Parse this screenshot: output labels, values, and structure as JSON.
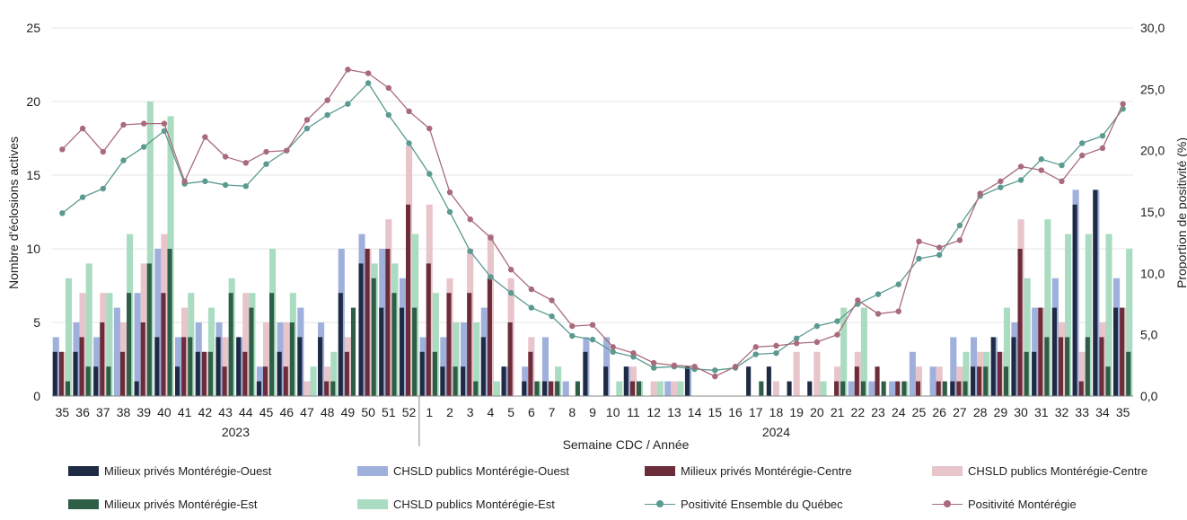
{
  "chart_data": {
    "type": "bar",
    "categories": [
      "35",
      "36",
      "37",
      "38",
      "39",
      "40",
      "41",
      "42",
      "43",
      "44",
      "45",
      "46",
      "47",
      "48",
      "49",
      "50",
      "51",
      "52",
      "1",
      "2",
      "3",
      "4",
      "5",
      "6",
      "7",
      "8",
      "9",
      "10",
      "11",
      "12",
      "13",
      "14",
      "15",
      "16",
      "17",
      "18",
      "19",
      "20",
      "21",
      "22",
      "23",
      "24",
      "25",
      "26",
      "27",
      "28",
      "29",
      "30",
      "31",
      "32",
      "33",
      "34",
      "35"
    ],
    "years": [
      {
        "label": "2023",
        "from": 0,
        "to": 17
      },
      {
        "label": "2024",
        "from": 18,
        "to": 52
      }
    ],
    "xlabel": "Semaine CDC / Année",
    "ylabel": "Nombre d'éclosions actives",
    "y2label": "Proportion de positivité (%)",
    "ylim": [
      0,
      25
    ],
    "y2lim": [
      0,
      30
    ],
    "yticks": [
      "0",
      "5",
      "10",
      "15",
      "20",
      "25"
    ],
    "y2ticks": [
      "0,0",
      "5,0",
      "10,0",
      "15,0",
      "20,0",
      "25,0",
      "30,0"
    ],
    "grid": true,
    "legend_position": "bottom",
    "series": [
      {
        "name": "Milieux privés Montérégie-Ouest",
        "kind": "bar",
        "color": "#1f2a44",
        "values": [
          3,
          3,
          2,
          0,
          1,
          4,
          2,
          3,
          4,
          4,
          1,
          3,
          4,
          4,
          7,
          9,
          6,
          6,
          3,
          2,
          2,
          4,
          2,
          1,
          1,
          0,
          3,
          2,
          2,
          0,
          0,
          2,
          0,
          0,
          2,
          2,
          1,
          1,
          0,
          0,
          0,
          0,
          0,
          0,
          1,
          2,
          4,
          4,
          3,
          6,
          13,
          14,
          6
        ]
      },
      {
        "name": "CHSLD publics Montérégie-Ouest",
        "kind": "bar",
        "color": "#9fb0dc",
        "values": [
          4,
          5,
          4,
          6,
          7,
          10,
          4,
          5,
          5,
          4,
          2,
          5,
          6,
          5,
          10,
          11,
          10,
          8,
          4,
          4,
          5,
          6,
          2,
          2,
          4,
          1,
          4,
          4,
          2,
          0,
          1,
          2,
          0,
          0,
          0,
          0,
          0,
          0,
          0,
          1,
          1,
          1,
          3,
          2,
          4,
          4,
          4,
          5,
          6,
          8,
          14,
          14,
          8
        ]
      },
      {
        "name": "Milieux privés  Montérégie-Centre",
        "kind": "bar",
        "color": "#6b2d3a",
        "values": [
          3,
          4,
          5,
          3,
          5,
          7,
          4,
          3,
          2,
          3,
          2,
          2,
          0,
          1,
          3,
          10,
          10,
          13,
          9,
          7,
          7,
          8,
          5,
          3,
          1,
          0,
          0,
          0,
          1,
          0,
          0,
          0,
          0,
          0,
          0,
          0,
          0,
          0,
          1,
          2,
          2,
          1,
          1,
          1,
          1,
          2,
          3,
          10,
          6,
          4,
          1,
          4,
          6
        ]
      },
      {
        "name": "CHSLD publics Montérégie-Centre",
        "kind": "bar",
        "color": "#e8c4cb",
        "values": [
          3,
          7,
          7,
          5,
          9,
          11,
          6,
          3,
          4,
          7,
          5,
          5,
          1,
          2,
          4,
          10,
          12,
          17,
          13,
          8,
          10,
          11,
          8,
          4,
          1,
          0,
          0,
          0,
          2,
          1,
          1,
          0,
          0,
          0,
          0,
          1,
          3,
          3,
          2,
          3,
          0,
          0,
          2,
          2,
          2,
          3,
          3,
          12,
          6,
          5,
          3,
          5,
          6
        ]
      },
      {
        "name": "Milieux privés Montérégie-Est",
        "kind": "bar",
        "color": "#2e5e45",
        "values": [
          1,
          2,
          2,
          7,
          9,
          10,
          4,
          3,
          7,
          6,
          7,
          5,
          0,
          1,
          6,
          8,
          7,
          6,
          3,
          2,
          1,
          0,
          0,
          1,
          1,
          1,
          0,
          0,
          1,
          0,
          0,
          0,
          0,
          0,
          1,
          0,
          0,
          0,
          1,
          1,
          1,
          1,
          0,
          1,
          1,
          2,
          2,
          3,
          4,
          4,
          4,
          2,
          3
        ]
      },
      {
        "name": "CHSLD publics Montérégie-Est",
        "kind": "bar",
        "color": "#a9dcc0",
        "values": [
          8,
          9,
          7,
          11,
          20,
          19,
          7,
          6,
          8,
          7,
          10,
          7,
          2,
          3,
          0,
          9,
          9,
          11,
          7,
          5,
          5,
          1,
          0,
          1,
          2,
          0,
          0,
          1,
          1,
          1,
          1,
          0,
          0,
          0,
          0,
          0,
          0,
          1,
          6,
          6,
          0,
          1,
          0,
          0,
          3,
          3,
          6,
          8,
          12,
          11,
          11,
          11,
          10
        ]
      },
      {
        "name": "Positivité Ensemble du Québec",
        "kind": "line",
        "axis": "y2",
        "color": "#5a9a90",
        "values": [
          14.9,
          16.2,
          16.9,
          19.2,
          20.3,
          21.6,
          17.3,
          17.5,
          17.2,
          17.1,
          18.9,
          20.0,
          21.8,
          22.9,
          23.8,
          25.5,
          22.9,
          20.6,
          18.1,
          15.0,
          11.8,
          9.7,
          8.4,
          7.2,
          6.5,
          4.9,
          4.6,
          3.6,
          3.2,
          2.3,
          2.4,
          2.2,
          2.1,
          2.3,
          3.4,
          3.5,
          4.7,
          5.7,
          6.1,
          7.5,
          8.3,
          9.1,
          11.2,
          11.5,
          13.9,
          16.3,
          17.0,
          17.6,
          19.3,
          18.8,
          20.6,
          21.2,
          23.4
        ]
      },
      {
        "name": "Positivité Montérégie",
        "kind": "line",
        "axis": "y2",
        "color": "#a86b7b",
        "values": [
          20.1,
          21.8,
          19.9,
          22.1,
          22.2,
          22.2,
          17.5,
          21.1,
          19.5,
          19.0,
          19.9,
          20.0,
          22.5,
          24.1,
          26.6,
          26.3,
          25.1,
          23.2,
          21.8,
          16.6,
          14.4,
          12.9,
          10.3,
          8.7,
          7.8,
          5.7,
          5.8,
          4.0,
          3.5,
          2.7,
          2.5,
          2.4,
          1.6,
          2.4,
          4.0,
          4.1,
          4.3,
          4.4,
          5.0,
          7.8,
          6.7,
          6.9,
          12.6,
          12.1,
          12.7,
          16.5,
          17.5,
          18.7,
          18.4,
          17.5,
          19.6,
          20.2,
          23.8
        ]
      }
    ]
  }
}
